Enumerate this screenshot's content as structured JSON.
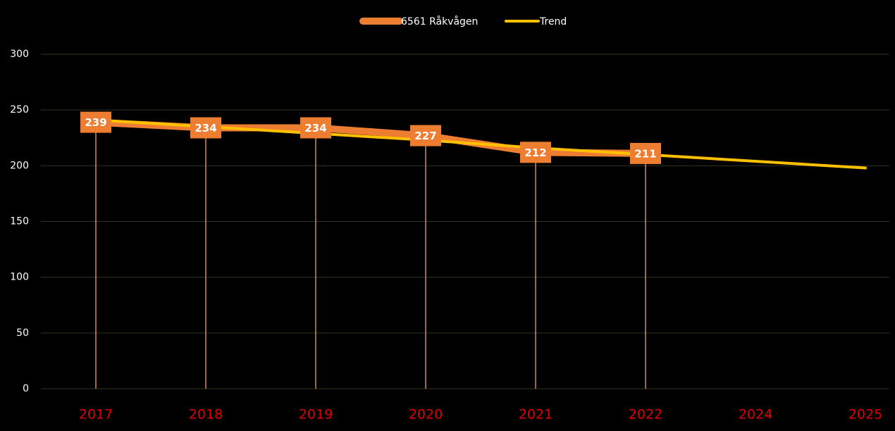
{
  "chart_data": {
    "type": "line",
    "categories": [
      "2017",
      "2018",
      "2019",
      "2020",
      "2021",
      "2022",
      "2024",
      "2025"
    ],
    "series": [
      {
        "name": "6561 Råkvågen",
        "color": "#ed7d31",
        "values": [
          239,
          234,
          234,
          227,
          212,
          211,
          null,
          null
        ]
      },
      {
        "name": "Trend",
        "color": "#ffc000",
        "values": [
          241,
          235,
          229,
          223,
          216,
          210,
          204,
          198
        ]
      }
    ],
    "ylim": [
      0,
      300
    ],
    "yticks": [
      0,
      50,
      100,
      150,
      200,
      250,
      300
    ],
    "grid": true,
    "legend": "top"
  }
}
